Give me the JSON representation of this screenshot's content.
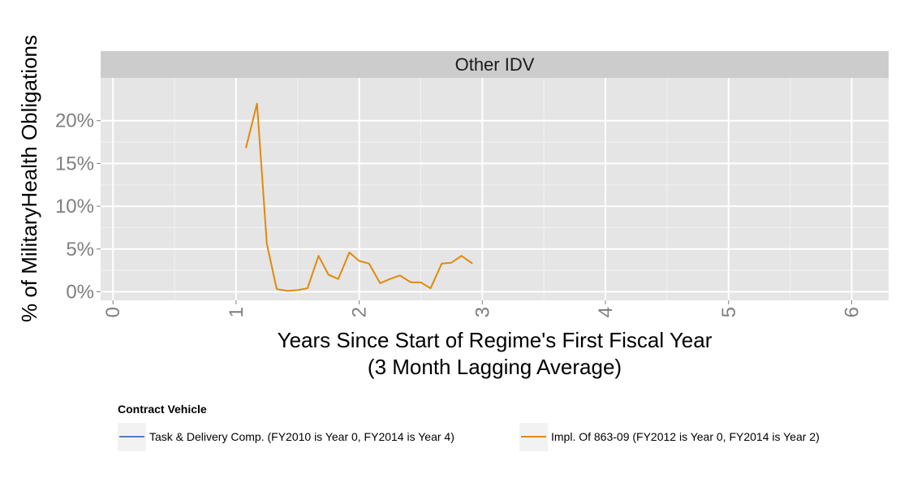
{
  "chart_data": {
    "type": "line",
    "facet_label": "Other IDV",
    "xlabel_line1": "Years Since Start of Regime's First Fiscal Year",
    "xlabel_line2": "(3 Month Lagging Average)",
    "ylabel": "% of MilitaryHealth Obligations",
    "xlim": [
      -0.1,
      6.3
    ],
    "ylim": [
      -1,
      25
    ],
    "x_ticks": [
      0,
      1,
      2,
      3,
      4,
      5,
      6
    ],
    "x_tick_labels": [
      "0",
      "1",
      "2",
      "3",
      "4",
      "5",
      "6"
    ],
    "y_ticks": [
      0,
      5,
      10,
      15,
      20
    ],
    "y_tick_labels": [
      "0%",
      "5%",
      "10%",
      "15%",
      "20%"
    ],
    "grid": true,
    "legend_position": "bottom",
    "legend_title": "Contract Vehicle",
    "series": [
      {
        "name": "Task & Delivery Comp. (FY2010 is Year 0, FY2014 is Year 4)",
        "color": "#4f81bd",
        "x": [],
        "y": []
      },
      {
        "name": "Impl. Of 863-09 (FY2012 is Year 0, FY2014 is Year 2)",
        "color": "#e08a0b",
        "x": [
          1.08,
          1.17,
          1.25,
          1.33,
          1.42,
          1.5,
          1.58,
          1.67,
          1.75,
          1.83,
          1.92,
          2.0,
          2.08,
          2.17,
          2.25,
          2.33,
          2.42,
          2.5,
          2.58,
          2.67,
          2.75,
          2.83,
          2.92
        ],
        "y": [
          16.8,
          22.0,
          5.6,
          0.3,
          0.1,
          0.2,
          0.4,
          4.2,
          2.0,
          1.5,
          4.6,
          3.6,
          3.3,
          1.0,
          1.5,
          1.9,
          1.1,
          1.1,
          0.4,
          3.3,
          3.4,
          4.2,
          3.3
        ]
      }
    ]
  }
}
